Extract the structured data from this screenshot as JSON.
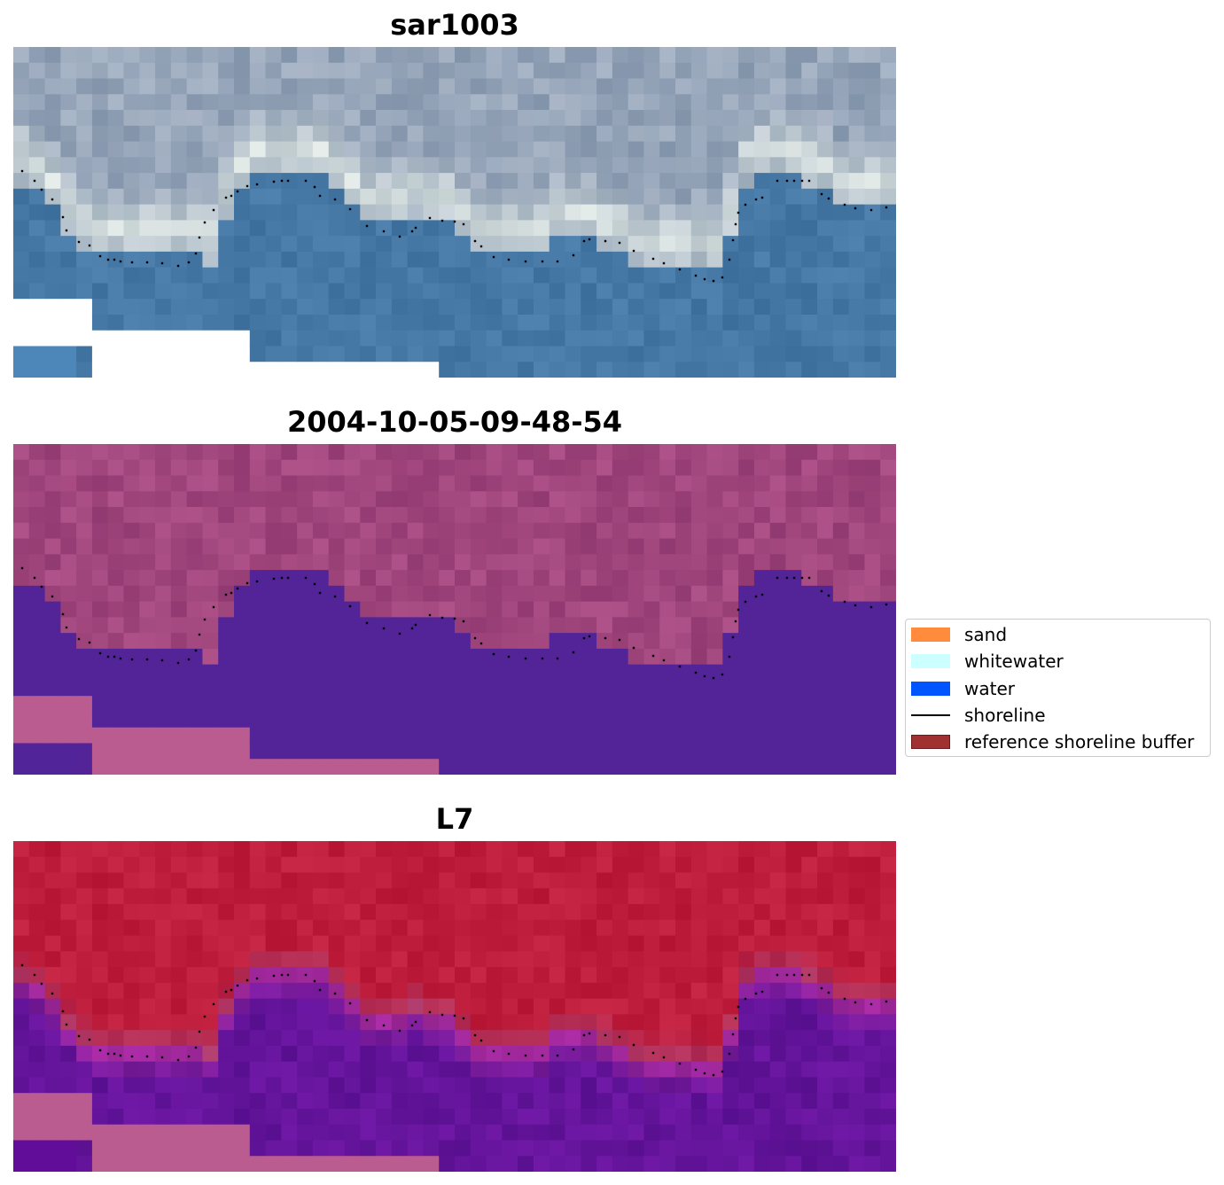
{
  "panels": [
    {
      "title": "sar1003",
      "style": "rgb"
    },
    {
      "title": "2004-10-05-09-48-54",
      "style": "classified"
    },
    {
      "title": "L7",
      "style": "index"
    }
  ],
  "legend": {
    "items": [
      {
        "label": "sand",
        "kind": "patch",
        "color": "#ff8c3c"
      },
      {
        "label": "whitewater",
        "kind": "patch",
        "color": "#ccffff"
      },
      {
        "label": "water",
        "kind": "patch",
        "color": "#0055ff"
      },
      {
        "label": "shoreline",
        "kind": "line",
        "color": "#000000"
      },
      {
        "label": "reference shoreline buffer",
        "kind": "patch",
        "color": "#a13030"
      }
    ]
  }
}
